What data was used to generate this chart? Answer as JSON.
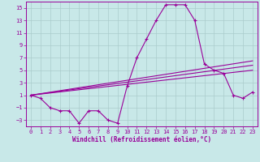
{
  "xlabel": "Windchill (Refroidissement éolien,°C)",
  "bg_color": "#c8e8e8",
  "grid_color": "#aacccc",
  "line_color": "#990099",
  "hours": [
    0,
    1,
    2,
    3,
    4,
    5,
    6,
    7,
    8,
    9,
    10,
    11,
    12,
    13,
    14,
    15,
    16,
    17,
    18,
    19,
    20,
    21,
    22,
    23
  ],
  "windchill": [
    1,
    0.5,
    -1,
    -1.5,
    -1.5,
    -3.5,
    -1.5,
    -1.5,
    -3,
    -3.5,
    2.5,
    7,
    10,
    13,
    15.5,
    15.5,
    15.5,
    13,
    6,
    5,
    4.5,
    1,
    0.5,
    1.5
  ],
  "line1_start": 1.0,
  "line1_end": 5.0,
  "line2_start": 1.0,
  "line2_end": 5.8,
  "line3_start": 1.0,
  "line3_end": 6.5,
  "xlim": [
    -0.5,
    23.5
  ],
  "ylim": [
    -4,
    16
  ],
  "yticks": [
    -3,
    -1,
    1,
    3,
    5,
    7,
    9,
    11,
    13,
    15
  ],
  "xticks": [
    0,
    1,
    2,
    3,
    4,
    5,
    6,
    7,
    8,
    9,
    10,
    11,
    12,
    13,
    14,
    15,
    16,
    17,
    18,
    19,
    20,
    21,
    22,
    23
  ],
  "tick_fontsize": 5,
  "xlabel_fontsize": 5.5
}
